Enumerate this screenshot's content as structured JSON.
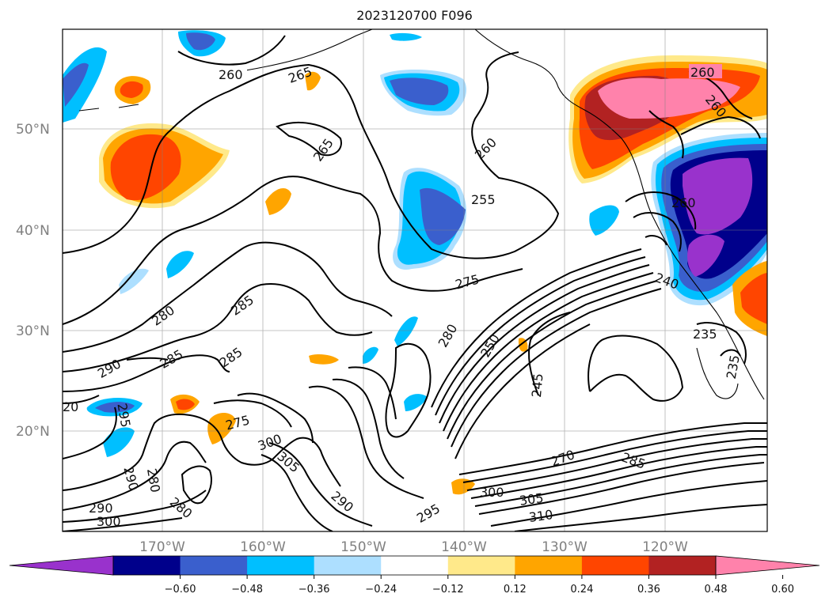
{
  "title": "2023120700 F096",
  "lat_labels": [
    "50°N",
    "40°N",
    "30°N",
    "20°N"
  ],
  "lon_labels": [
    "170°W",
    "160°W",
    "150°W",
    "140°W",
    "130°W",
    "120°W"
  ],
  "contour_labels": [
    "260",
    "265",
    "265",
    "260",
    "255",
    "275",
    "280",
    "285",
    "280",
    "285",
    "285",
    "290",
    "295",
    "290",
    "275",
    "280",
    "280",
    "290",
    "300",
    "300",
    "305",
    "290",
    "295",
    "300",
    "305",
    "310",
    "285",
    "270",
    "250",
    "245",
    "235",
    "235",
    "240",
    "260",
    "260",
    "260",
    "20"
  ],
  "colorbar": {
    "ticks": [
      "−0.60",
      "−0.48",
      "−0.36",
      "−0.24",
      "−0.12",
      "0.12",
      "0.24",
      "0.36",
      "0.48",
      "0.60"
    ],
    "colors": [
      "#9932CC",
      "#00008B",
      "#3A5FCD",
      "#00BFFF",
      "#ADDFFF",
      "#FFFFFF",
      "#FFE98A",
      "#FFA500",
      "#FF4500",
      "#B22222",
      "#FF82AB"
    ]
  }
}
